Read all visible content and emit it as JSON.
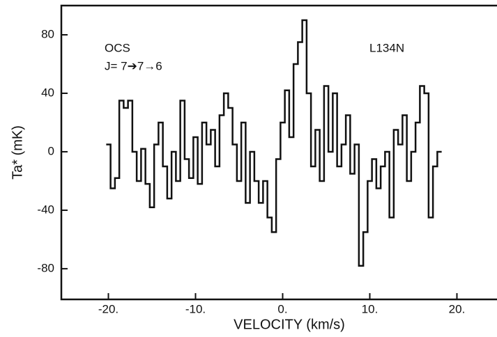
{
  "chart_data": {
    "type": "step",
    "annotations": [
      "OCS",
      "J= 7➔7→6",
      "L134N"
    ],
    "xlabel": "VELOCITY (km/s)",
    "ylabel": "Ta* (mK)",
    "color": "#111111",
    "xlim": [
      -25.4,
      24.6
    ],
    "ylim": [
      -101,
      100
    ],
    "xticks": [
      {
        "value": -20,
        "label": "-20."
      },
      {
        "value": -10,
        "label": "-10."
      },
      {
        "value": 0,
        "label": "0."
      },
      {
        "value": 10,
        "label": "10."
      },
      {
        "value": 20,
        "label": "20."
      }
    ],
    "yticks": [
      80,
      40,
      0,
      -40,
      -80
    ],
    "x": [
      -20,
      -19.5,
      -19,
      -18.5,
      -18,
      -17.5,
      -17,
      -16.5,
      -16,
      -15.5,
      -15,
      -14.5,
      -14,
      -13.5,
      -13,
      -12.5,
      -12,
      -11.5,
      -11,
      -10.5,
      -10,
      -9.5,
      -9,
      -8.5,
      -8,
      -7.5,
      -7,
      -6.5,
      -6,
      -5.5,
      -5,
      -4.5,
      -4,
      -3.5,
      -3,
      -2.5,
      -2,
      -1.5,
      -1,
      -0.5,
      0,
      0.5,
      1,
      1.5,
      2,
      2.5,
      3,
      3.5,
      4,
      4.5,
      5,
      5.5,
      6,
      6.5,
      7,
      7.5,
      8,
      8.5,
      9,
      9.5,
      10,
      10.5,
      11,
      11.5,
      12,
      12.5,
      13,
      13.5,
      14,
      14.5,
      15,
      15.5,
      16,
      16.5,
      17,
      17.5,
      18
    ],
    "values": [
      5,
      -25,
      -18,
      35,
      30,
      35,
      0,
      -20,
      2,
      -22,
      -38,
      5,
      20,
      -10,
      -32,
      0,
      -20,
      35,
      -5,
      -18,
      10,
      -22,
      20,
      5,
      15,
      -10,
      25,
      40,
      30,
      5,
      -20,
      20,
      -35,
      0,
      -20,
      -35,
      -20,
      -45,
      -55,
      -5,
      20,
      42,
      10,
      60,
      75,
      90,
      40,
      -10,
      15,
      -20,
      45,
      0,
      40,
      -10,
      5,
      25,
      -15,
      5,
      -78,
      -55,
      -20,
      -5,
      -25,
      -10,
      0,
      -45,
      15,
      5,
      25,
      -20,
      0,
      20,
      45,
      40,
      -45,
      -10,
      0
    ]
  }
}
